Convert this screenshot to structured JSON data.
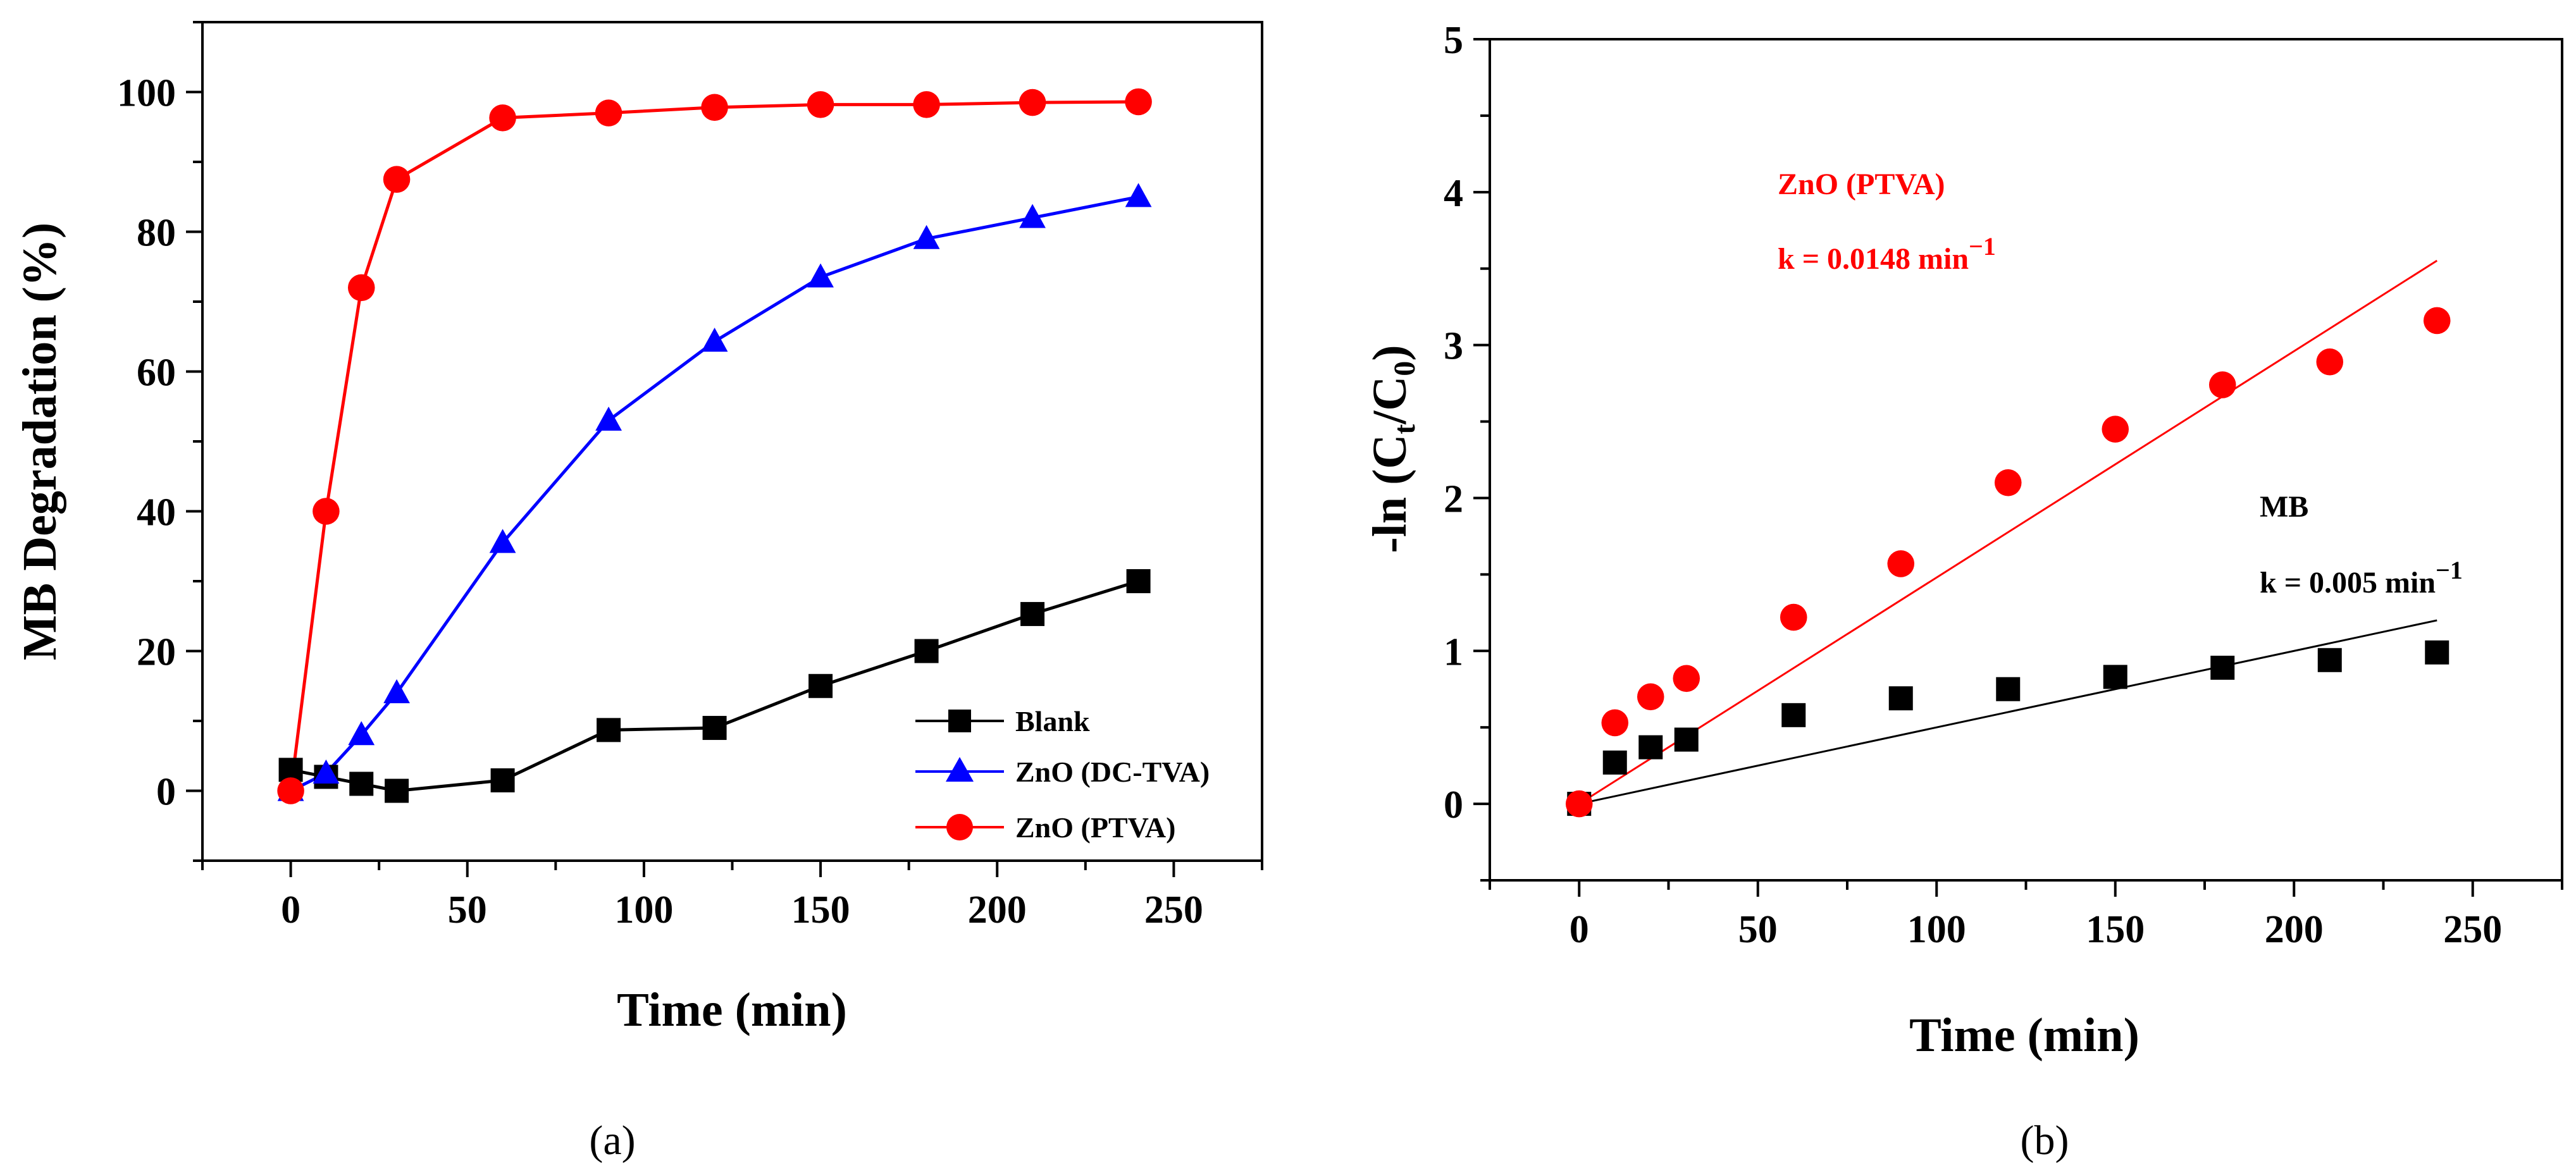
{
  "chart_data": [
    {
      "type": "line",
      "panel_label": "(a)",
      "xlabel": "Time  (min)",
      "ylabel": "MB Degradation (%)",
      "xlim": [
        -25,
        275
      ],
      "ylim": [
        -10,
        110
      ],
      "xticks": [
        0,
        50,
        100,
        150,
        200,
        250
      ],
      "yticks": [
        0,
        20,
        40,
        60,
        80,
        100
      ],
      "xtick_labels": [
        "0",
        "50",
        "100",
        "150",
        "200",
        "250"
      ],
      "ytick_labels": [
        "0",
        "20",
        "40",
        "60",
        "80",
        "100"
      ],
      "legend_position": "bottom-right",
      "series": [
        {
          "name": "Blank",
          "color": "#000000",
          "marker": "square",
          "x": [
            0,
            10,
            20,
            30,
            60,
            90,
            120,
            150,
            180,
            210,
            240
          ],
          "y": [
            3,
            2,
            1,
            0,
            1.5,
            8.7,
            9,
            15,
            20,
            25.3,
            30
          ]
        },
        {
          "name": "ZnO (DC-TVA)",
          "color": "#0000ff",
          "marker": "triangle",
          "x": [
            0,
            10,
            20,
            30,
            60,
            90,
            120,
            150,
            180,
            210,
            240
          ],
          "y": [
            0,
            2.5,
            8,
            14,
            35.5,
            53,
            64.3,
            73.5,
            79,
            82,
            85
          ]
        },
        {
          "name": "ZnO (PTVA)",
          "color": "#ff0000",
          "marker": "circle",
          "x": [
            0,
            10,
            20,
            30,
            60,
            90,
            120,
            150,
            180,
            210,
            240
          ],
          "y": [
            0,
            40,
            72,
            87.5,
            96.3,
            97,
            97.8,
            98.2,
            98.2,
            98.5,
            98.6
          ]
        }
      ]
    },
    {
      "type": "scatter",
      "panel_label": "(b)",
      "xlabel": "Time (min)",
      "ylabel": "-ln (C",
      "ylabel_sub1": "t",
      "ylabel_mid": "/C",
      "ylabel_sub2": "0",
      "ylabel_end": ")",
      "xlim": [
        -25,
        275
      ],
      "ylim": [
        -0.5,
        5
      ],
      "xticks": [
        0,
        50,
        100,
        150,
        200,
        250
      ],
      "yticks": [
        0,
        1,
        2,
        3,
        4,
        5
      ],
      "xtick_labels": [
        "0",
        "50",
        "100",
        "150",
        "200",
        "250"
      ],
      "ytick_labels": [
        "0",
        "1",
        "2",
        "3",
        "4",
        "5"
      ],
      "series": [
        {
          "name": "ZnO (PTVA)",
          "color": "#ff0000",
          "marker": "circle",
          "x": [
            0,
            10,
            20,
            30,
            60,
            90,
            120,
            150,
            180,
            210,
            240
          ],
          "y": [
            0,
            0.53,
            0.7,
            0.82,
            1.22,
            1.57,
            2.1,
            2.45,
            2.74,
            2.89,
            3.16
          ],
          "fit_slope": 0.0148
        },
        {
          "name": "MB",
          "color": "#000000",
          "marker": "square",
          "x": [
            0,
            10,
            20,
            30,
            60,
            90,
            120,
            150,
            180,
            210,
            240
          ],
          "y": [
            0,
            0.27,
            0.37,
            0.42,
            0.58,
            0.69,
            0.75,
            0.83,
            0.89,
            0.94,
            0.99
          ],
          "fit_slope": 0.005
        }
      ],
      "annotations": [
        {
          "id": "ptva_name",
          "text": "ZnO (PTVA)",
          "color": "#ff0000"
        },
        {
          "id": "ptva_k",
          "text": "k = 0.0148 min",
          "sup": "−1",
          "color": "#ff0000"
        },
        {
          "id": "mb_name",
          "text": "MB",
          "color": "#000000"
        },
        {
          "id": "mb_k",
          "text": "k = 0.005 min",
          "sup": "−1",
          "color": "#000000"
        }
      ]
    }
  ]
}
